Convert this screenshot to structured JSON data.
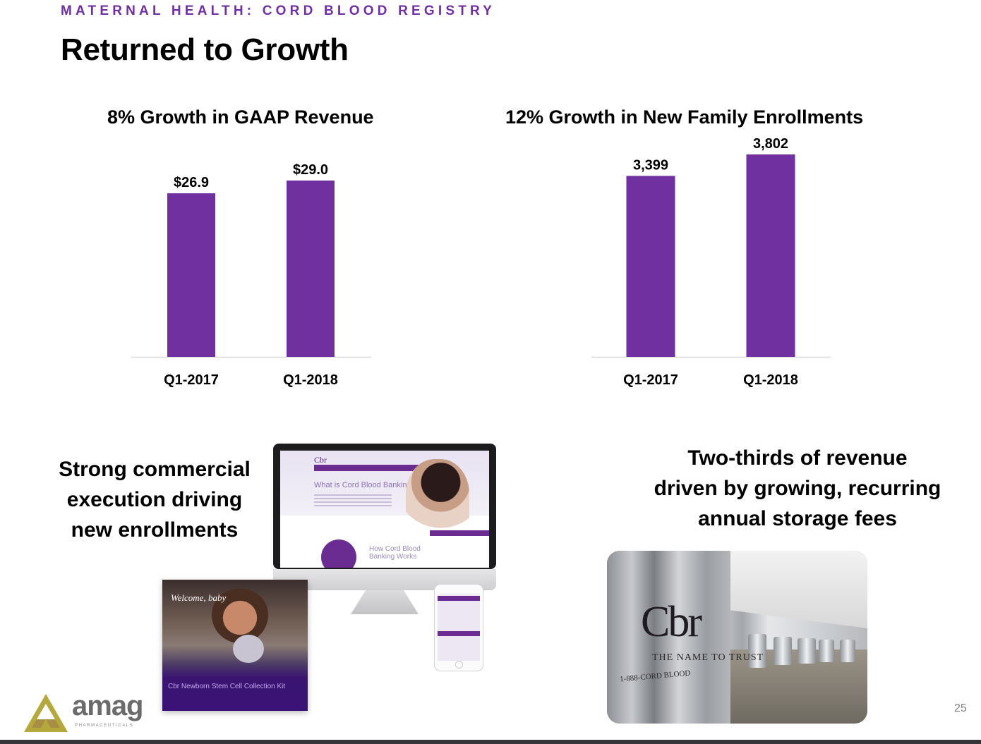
{
  "slide": {
    "kicker": "MATERNAL HEALTH: CORD BLOOD REGISTRY",
    "title": "Returned to Growth",
    "page_number": "25",
    "accent_color": "#7030a0",
    "bar_color": "#7030a0"
  },
  "chart_data": [
    {
      "type": "bar",
      "title": "8% Growth in GAAP Revenue",
      "categories": [
        "Q1-2017",
        "Q1-2018"
      ],
      "values": [
        26.9,
        29.0
      ],
      "data_labels": [
        "$26.9",
        "$29.0"
      ],
      "xlabel": "",
      "ylabel": "",
      "ylim": [
        0,
        29.0
      ],
      "grid": false,
      "legend": "none"
    },
    {
      "type": "bar",
      "title": "12% Growth in New Family Enrollments",
      "categories": [
        "Q1-2017",
        "Q1-2018"
      ],
      "values": [
        3399,
        3802
      ],
      "data_labels": [
        "3,399",
        "3,802"
      ],
      "xlabel": "",
      "ylabel": "",
      "ylim": [
        0,
        3802
      ],
      "grid": false,
      "legend": "none"
    }
  ],
  "blurbs": {
    "left": [
      "Strong commercial",
      "execution driving",
      "new enrollments"
    ],
    "right": [
      "Two-thirds of revenue",
      "driven by growing, recurring",
      "annual storage fees"
    ]
  },
  "images": {
    "website_heading": "What is Cord Blood Banking?",
    "website_subheading": "How Cord Blood Banking Works",
    "website_logo": "Cbr",
    "brochure_welcome": "Welcome, baby",
    "brochure_tagline": "Cbr Newborn Stem Cell Collection Kit",
    "tank_logo": "Cbr",
    "tank_tagline": "THE NAME TO TRUST",
    "tank_phone": "1-888-CORD BLOOD"
  },
  "logo": {
    "name": "amag",
    "subtitle": "PHARMACEUTICALS"
  }
}
